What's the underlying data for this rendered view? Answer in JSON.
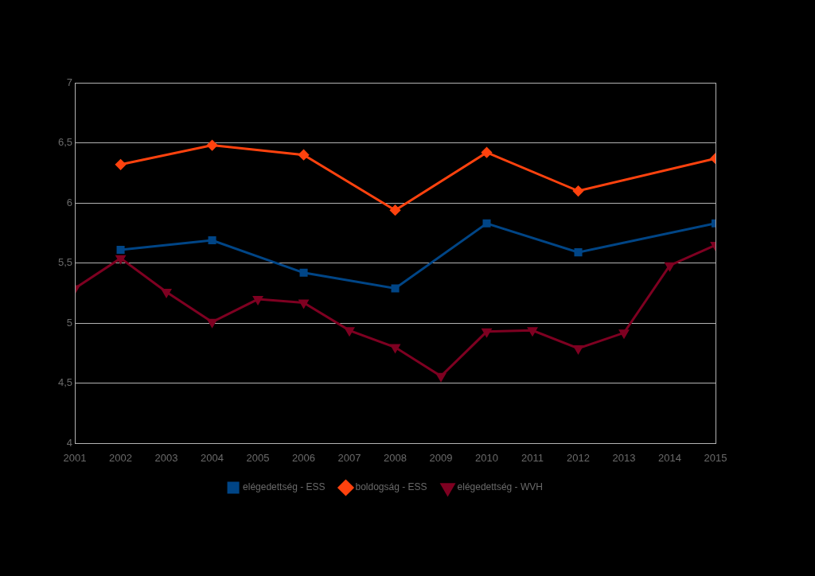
{
  "chart_data": {
    "type": "line",
    "x": [
      2001,
      2002,
      2003,
      2004,
      2005,
      2006,
      2007,
      2008,
      2009,
      2010,
      2011,
      2012,
      2013,
      2014,
      2015
    ],
    "series": [
      {
        "name": "elégedettség - ESS",
        "color": "#004586",
        "marker": "square",
        "x": [
          2002,
          2004,
          2006,
          2008,
          2010,
          2012,
          2015
        ],
        "values": [
          5.61,
          5.69,
          5.42,
          5.29,
          5.83,
          5.59,
          5.83
        ]
      },
      {
        "name": "boldogság - ESS",
        "color": "#ff420e",
        "marker": "diamond",
        "x": [
          2002,
          2004,
          2006,
          2008,
          2010,
          2012,
          2015
        ],
        "values": [
          6.32,
          6.48,
          6.4,
          5.94,
          6.42,
          6.1,
          6.37
        ]
      },
      {
        "name": "elégedettség - WVH",
        "color": "#7e0021",
        "marker": "triangle-down",
        "x": [
          2001,
          2002,
          2003,
          2004,
          2005,
          2006,
          2007,
          2008,
          2009,
          2010,
          2011,
          2012,
          2013,
          2014,
          2015
        ],
        "values": [
          5.29,
          5.54,
          5.26,
          5.01,
          5.2,
          5.17,
          4.94,
          4.8,
          4.56,
          4.93,
          4.94,
          4.79,
          4.92,
          5.48,
          5.65
        ]
      }
    ],
    "xlim": [
      2001,
      2015
    ],
    "xticks": [
      2001,
      2002,
      2003,
      2004,
      2005,
      2006,
      2007,
      2008,
      2009,
      2010,
      2011,
      2012,
      2013,
      2014,
      2015
    ],
    "ylim": [
      4,
      7
    ],
    "yticks": [
      4,
      {
        "value": 4.5,
        "label": "4,5"
      },
      5,
      {
        "value": 5.5,
        "label": "5,5"
      },
      6,
      {
        "value": 6.5,
        "label": "6,5"
      },
      7
    ],
    "grid": true,
    "legend": "bottom"
  }
}
